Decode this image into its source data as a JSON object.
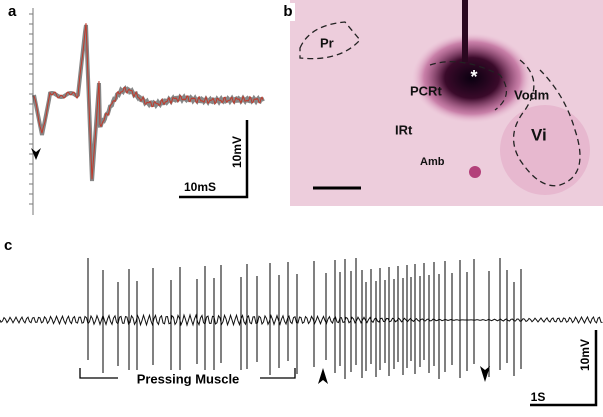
{
  "panels": {
    "a": {
      "label": "a",
      "scale_y": "10mV",
      "scale_x": "10mS"
    },
    "b": {
      "label": "b",
      "regions": [
        "Pr",
        "PCRt",
        "Vodm",
        "IRt",
        "Vi",
        "Amb"
      ],
      "marker": "*"
    },
    "c": {
      "label": "c",
      "scale_y": "10mV",
      "scale_x": "1S",
      "bracket": "Pressing Muscle"
    }
  }
}
